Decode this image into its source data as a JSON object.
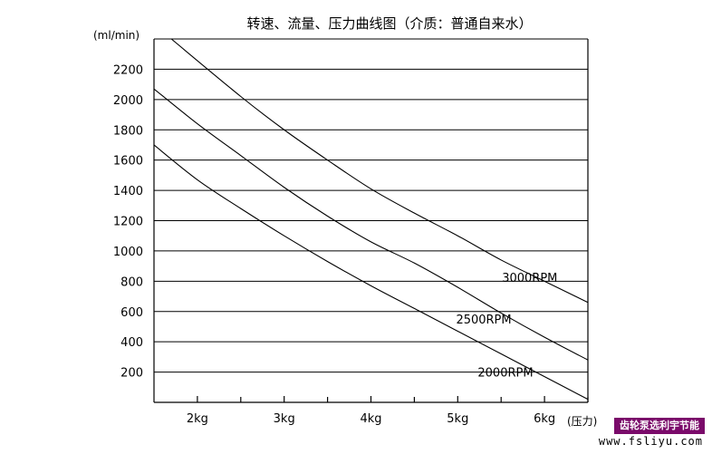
{
  "chart_data": {
    "type": "line",
    "title": "转速、流量、压力曲线图（介质：普通自来水）",
    "ylabel": "(ml/min)",
    "xlabel": "(压力)",
    "x_ticks": [
      "2kg",
      "3kg",
      "4kg",
      "5kg",
      "6kg"
    ],
    "y_ticks": [
      200,
      400,
      600,
      800,
      1000,
      1200,
      1400,
      1600,
      1800,
      2000,
      2200
    ],
    "xlim": [
      1.5,
      6.5
    ],
    "ylim": [
      0,
      2400
    ],
    "grid": true,
    "series": [
      {
        "name": "3000RPM",
        "x": [
          1.7,
          2.5,
          3.0,
          3.5,
          4.0,
          4.5,
          5.0,
          5.5,
          6.0,
          6.5
        ],
        "y": [
          2400,
          2020,
          1800,
          1600,
          1410,
          1250,
          1100,
          940,
          800,
          660
        ]
      },
      {
        "name": "2500RPM",
        "x": [
          1.5,
          2.0,
          2.5,
          3.0,
          3.5,
          4.0,
          4.5,
          5.0,
          5.5,
          6.0,
          6.5
        ],
        "y": [
          2070,
          1840,
          1630,
          1420,
          1230,
          1060,
          920,
          760,
          590,
          430,
          280
        ]
      },
      {
        "name": "2000RPM",
        "x": [
          1.5,
          2.0,
          2.5,
          3.0,
          3.5,
          4.0,
          4.5,
          5.0,
          5.5,
          6.0,
          6.5
        ],
        "y": [
          1700,
          1470,
          1280,
          1100,
          930,
          770,
          620,
          470,
          320,
          170,
          20
        ]
      }
    ]
  },
  "watermark": {
    "badge": "齿轮泵选利宇节能",
    "url": "www.fsliyu.com"
  }
}
